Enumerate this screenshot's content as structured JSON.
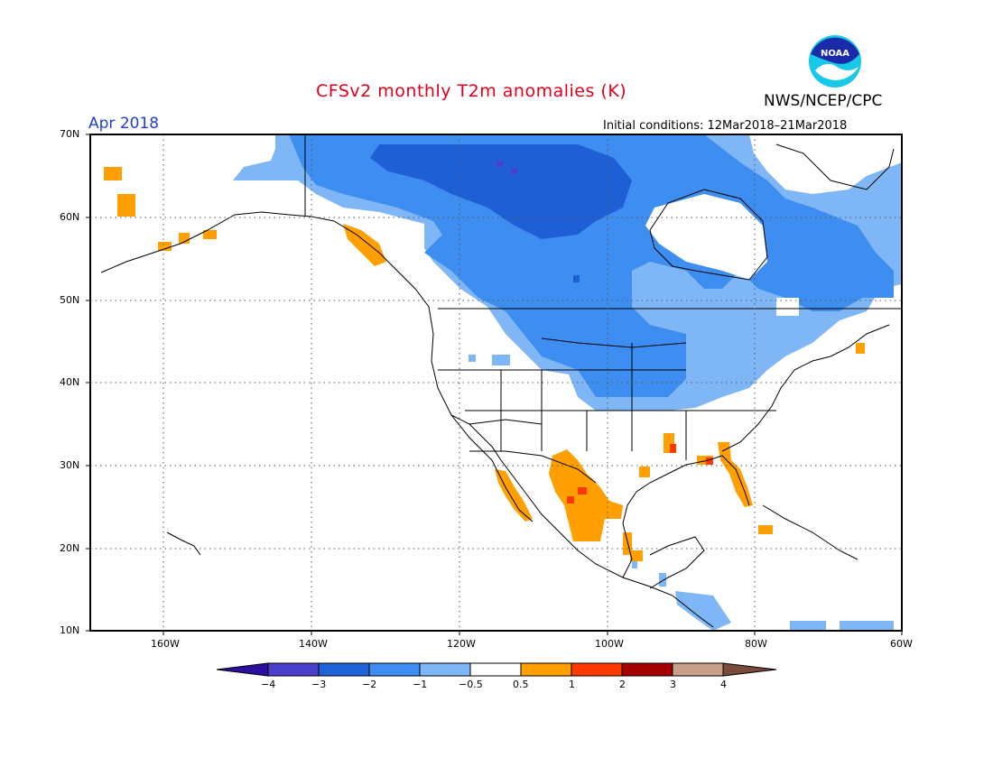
{
  "title": "CFSv2 monthly T2m anomalies (K)",
  "agency": "NWS/NCEP/CPC",
  "logo_text": "NOAA",
  "valid_month": "Apr 2018",
  "initial_conditions": "Initial conditions: 12Mar2018–21Mar2018",
  "lat_labels": [
    "70N",
    "60N",
    "50N",
    "40N",
    "30N",
    "20N",
    "10N"
  ],
  "lon_labels": [
    "160W",
    "140W",
    "120W",
    "100W",
    "80W",
    "60W"
  ],
  "colorbar": {
    "labels": [
      "−4",
      "−3",
      "−2",
      "−1",
      "−0.5",
      "0.5",
      "1",
      "2",
      "3",
      "4"
    ],
    "colors": [
      "#2c0fa0",
      "#4c3fcc",
      "#1e63d8",
      "#3d8ef0",
      "#7fb6f5",
      "#ffffff",
      "#ff9f00",
      "#ff3a00",
      "#a40000",
      "#c9a08a",
      "#7a4a3a"
    ]
  },
  "anomaly_colors": {
    "minus3": "#1e5fd6",
    "minus2": "#3d8ef0",
    "minus1": "#7fb6f5",
    "plus05": "#ff9f00",
    "plus1": "#ff3a00"
  }
}
